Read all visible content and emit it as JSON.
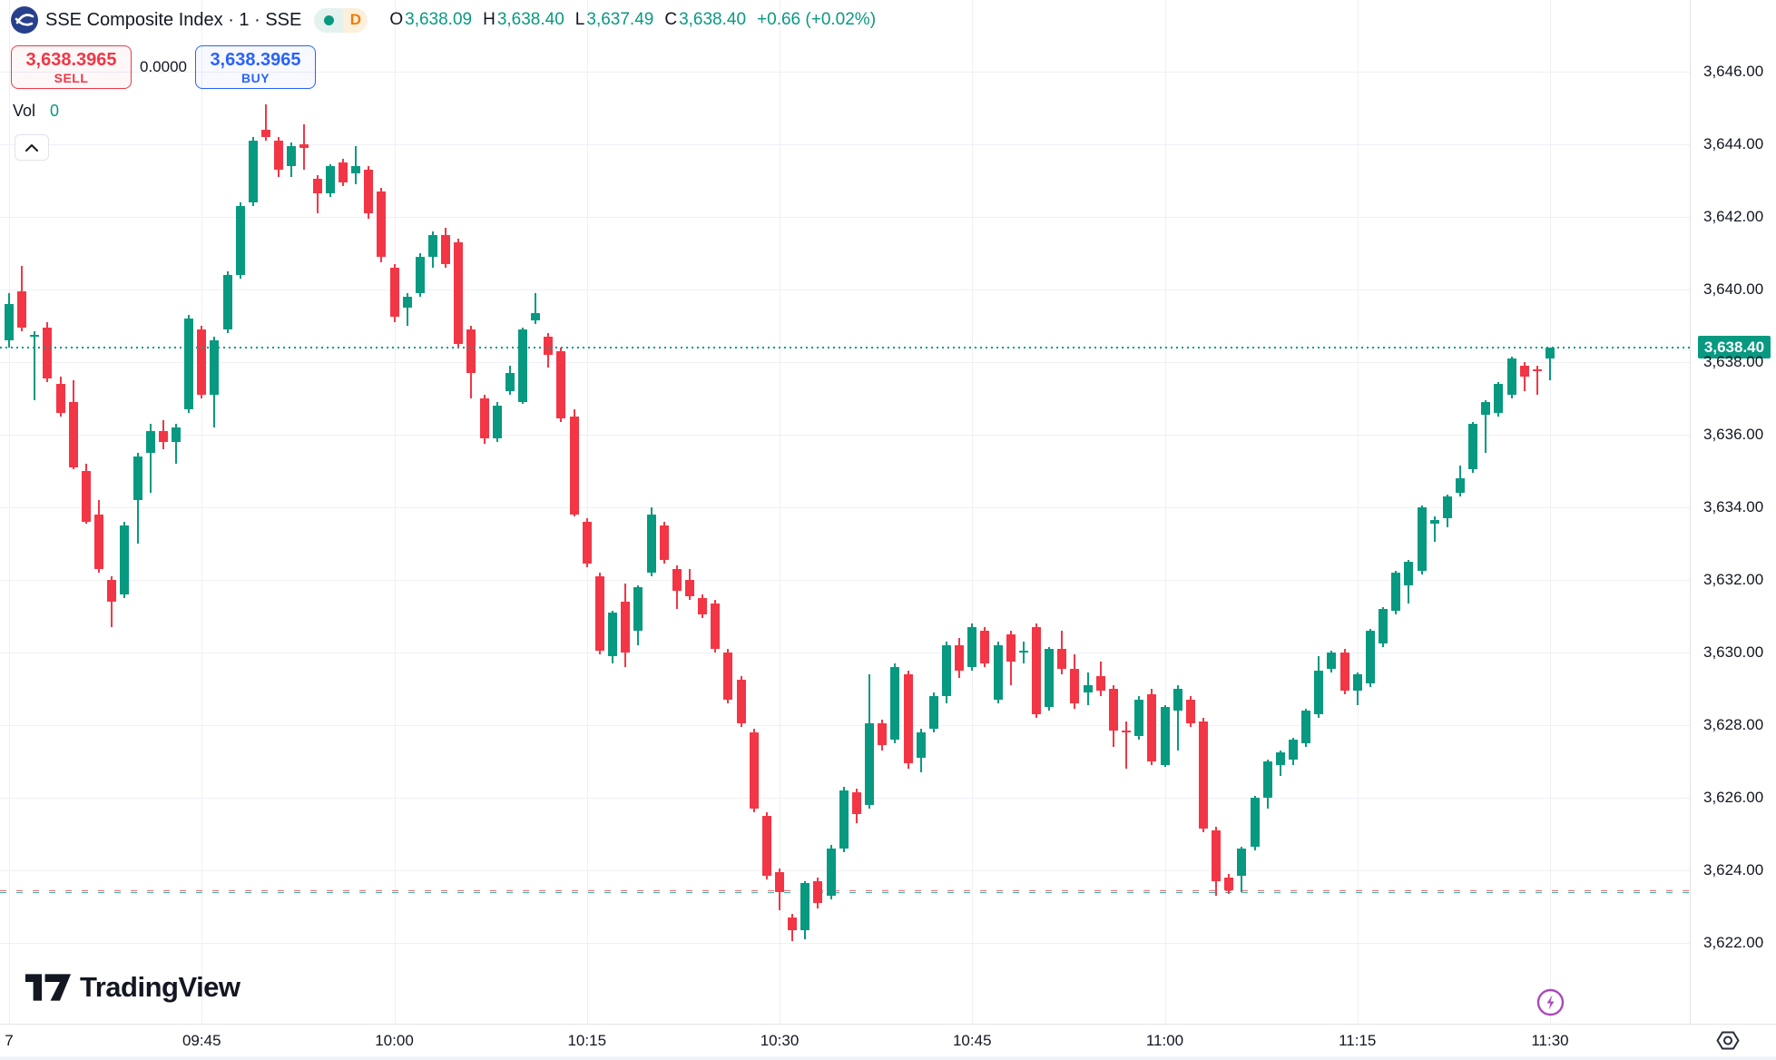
{
  "header": {
    "symbol_title": "SSE Composite Index · 1 · SSE",
    "interval_badge": "D",
    "ohlc": {
      "o_label": "O",
      "o": "3,638.09",
      "h_label": "H",
      "h": "3,638.40",
      "l_label": "L",
      "l": "3,637.49",
      "c_label": "C",
      "c": "3,638.40",
      "change": "+0.66 (+0.02%)"
    }
  },
  "trade_panel": {
    "sell_price": "3,638.3965",
    "sell_label": "SELL",
    "spread": "0.0000",
    "buy_price": "3,638.3965",
    "buy_label": "BUY",
    "vol_label": "Vol",
    "vol_value": "0"
  },
  "footer": {
    "brand": "TradingView"
  },
  "colors": {
    "up": "#089981",
    "down": "#f23645",
    "buy_blue": "#2962ff",
    "sell_red": "#f23645",
    "interval_orange": "#f57c00",
    "flash_purple": "#ab47bc",
    "text": "#131722",
    "grid": "#eef0f6"
  },
  "chart_data": {
    "type": "candlestick",
    "title": "SSE Composite Index · 1 · SSE",
    "interval": "1 minute",
    "ylim": [
      3619.8,
      3648.0
    ],
    "grid": true,
    "up_color": "#089981",
    "down_color": "#f23645",
    "price_line": {
      "value": 3638.4,
      "label": "3,638.40"
    },
    "low_line_value": 3623.42,
    "y_ticks": [
      {
        "label": "3,646.00",
        "value": 3646
      },
      {
        "label": "3,644.00",
        "value": 3644
      },
      {
        "label": "3,642.00",
        "value": 3642
      },
      {
        "label": "3,640.00",
        "value": 3640
      },
      {
        "label": "3,638.00",
        "value": 3638
      },
      {
        "label": "3,636.00",
        "value": 3636
      },
      {
        "label": "3,634.00",
        "value": 3634
      },
      {
        "label": "3,632.00",
        "value": 3632
      },
      {
        "label": "3,630.00",
        "value": 3630
      },
      {
        "label": "3,628.00",
        "value": 3628
      },
      {
        "label": "3,626.00",
        "value": 3626
      },
      {
        "label": "3,624.00",
        "value": 3624
      },
      {
        "label": "3,622.00",
        "value": 3622
      }
    ],
    "x_ticks": [
      {
        "label": "7",
        "index": 0
      },
      {
        "label": "09:45",
        "index": 15
      },
      {
        "label": "10:00",
        "index": 30
      },
      {
        "label": "10:15",
        "index": 45
      },
      {
        "label": "10:30",
        "index": 60
      },
      {
        "label": "10:45",
        "index": 75
      },
      {
        "label": "11:00",
        "index": 90
      },
      {
        "label": "11:15",
        "index": 105
      },
      {
        "label": "11:30",
        "index": 120
      }
    ],
    "candles_format": [
      "open",
      "high",
      "low",
      "close"
    ],
    "candles": [
      [
        3638.6,
        3639.9,
        3638.4,
        3639.6
      ],
      [
        3639.95,
        3640.65,
        3638.85,
        3638.95
      ],
      [
        3638.7,
        3638.85,
        3636.95,
        3638.75
      ],
      [
        3638.95,
        3639.1,
        3637.45,
        3637.55
      ],
      [
        3637.4,
        3637.6,
        3636.5,
        3636.6
      ],
      [
        3636.9,
        3637.5,
        3635.05,
        3635.1
      ],
      [
        3635.0,
        3635.2,
        3633.55,
        3633.6
      ],
      [
        3633.8,
        3634.2,
        3632.2,
        3632.3
      ],
      [
        3632.0,
        3632.1,
        3630.7,
        3631.4
      ],
      [
        3631.6,
        3633.6,
        3631.5,
        3633.5
      ],
      [
        3634.2,
        3635.5,
        3633.0,
        3635.4
      ],
      [
        3635.5,
        3636.3,
        3634.4,
        3636.1
      ],
      [
        3636.1,
        3636.4,
        3635.6,
        3635.8
      ],
      [
        3635.8,
        3636.3,
        3635.2,
        3636.2
      ],
      [
        3636.7,
        3639.3,
        3636.6,
        3639.2
      ],
      [
        3638.9,
        3639.0,
        3637.0,
        3637.1
      ],
      [
        3637.1,
        3638.7,
        3636.2,
        3638.6
      ],
      [
        3638.9,
        3640.5,
        3638.8,
        3640.4
      ],
      [
        3640.4,
        3642.4,
        3640.3,
        3642.3
      ],
      [
        3642.4,
        3644.2,
        3642.3,
        3644.1
      ],
      [
        3644.4,
        3645.1,
        3644.1,
        3644.2
      ],
      [
        3644.1,
        3644.2,
        3643.1,
        3643.3
      ],
      [
        3643.4,
        3644.05,
        3643.1,
        3643.95
      ],
      [
        3644.0,
        3644.55,
        3643.3,
        3643.9
      ],
      [
        3643.05,
        3643.15,
        3642.1,
        3642.65
      ],
      [
        3642.65,
        3643.45,
        3642.55,
        3643.4
      ],
      [
        3643.5,
        3643.6,
        3642.85,
        3642.95
      ],
      [
        3643.2,
        3643.95,
        3642.9,
        3643.4
      ],
      [
        3643.3,
        3643.4,
        3641.95,
        3642.1
      ],
      [
        3642.7,
        3642.8,
        3640.75,
        3640.9
      ],
      [
        3640.6,
        3640.7,
        3639.1,
        3639.25
      ],
      [
        3639.5,
        3639.9,
        3639.0,
        3639.8
      ],
      [
        3639.9,
        3641.0,
        3639.8,
        3640.9
      ],
      [
        3640.9,
        3641.6,
        3640.6,
        3641.5
      ],
      [
        3641.5,
        3641.7,
        3640.6,
        3640.7
      ],
      [
        3641.3,
        3641.4,
        3638.4,
        3638.5
      ],
      [
        3638.9,
        3639.0,
        3637.0,
        3637.7
      ],
      [
        3637.0,
        3637.1,
        3635.75,
        3635.9
      ],
      [
        3635.9,
        3636.9,
        3635.8,
        3636.8
      ],
      [
        3637.2,
        3637.9,
        3637.1,
        3637.7
      ],
      [
        3636.9,
        3638.95,
        3636.85,
        3638.9
      ],
      [
        3639.15,
        3639.9,
        3639.05,
        3639.35
      ],
      [
        3638.7,
        3638.8,
        3637.85,
        3638.2
      ],
      [
        3638.3,
        3638.4,
        3636.35,
        3636.45
      ],
      [
        3636.5,
        3636.7,
        3633.75,
        3633.8
      ],
      [
        3633.6,
        3633.7,
        3632.35,
        3632.45
      ],
      [
        3632.1,
        3632.2,
        3629.95,
        3630.05
      ],
      [
        3629.9,
        3631.15,
        3629.7,
        3631.1
      ],
      [
        3631.4,
        3631.9,
        3629.6,
        3630.0
      ],
      [
        3630.6,
        3631.85,
        3630.2,
        3631.8
      ],
      [
        3632.2,
        3634.0,
        3632.1,
        3633.8
      ],
      [
        3633.5,
        3633.6,
        3632.45,
        3632.55
      ],
      [
        3632.3,
        3632.4,
        3631.2,
        3631.7
      ],
      [
        3632.0,
        3632.3,
        3631.45,
        3631.55
      ],
      [
        3631.5,
        3631.6,
        3630.95,
        3631.05
      ],
      [
        3631.35,
        3631.45,
        3630.0,
        3630.1
      ],
      [
        3630.0,
        3630.1,
        3628.6,
        3628.7
      ],
      [
        3629.25,
        3629.35,
        3627.95,
        3628.05
      ],
      [
        3627.8,
        3627.9,
        3625.6,
        3625.7
      ],
      [
        3625.5,
        3625.6,
        3623.75,
        3623.85
      ],
      [
        3623.95,
        3624.05,
        3622.9,
        3623.4
      ],
      [
        3622.7,
        3622.8,
        3622.05,
        3622.35
      ],
      [
        3622.35,
        3623.7,
        3622.1,
        3623.65
      ],
      [
        3623.7,
        3623.8,
        3622.95,
        3623.1
      ],
      [
        3623.3,
        3624.7,
        3623.2,
        3624.6
      ],
      [
        3624.6,
        3626.3,
        3624.5,
        3626.2
      ],
      [
        3626.15,
        3626.25,
        3625.3,
        3625.55
      ],
      [
        3625.8,
        3629.4,
        3625.7,
        3628.05
      ],
      [
        3628.05,
        3628.15,
        3627.3,
        3627.45
      ],
      [
        3627.6,
        3629.7,
        3627.5,
        3629.6
      ],
      [
        3629.4,
        3629.5,
        3626.8,
        3626.95
      ],
      [
        3627.1,
        3627.9,
        3626.7,
        3627.8
      ],
      [
        3627.9,
        3628.9,
        3627.8,
        3628.8
      ],
      [
        3628.8,
        3630.3,
        3628.6,
        3630.2
      ],
      [
        3630.2,
        3630.4,
        3629.3,
        3629.5
      ],
      [
        3629.6,
        3630.8,
        3629.5,
        3630.7
      ],
      [
        3630.6,
        3630.7,
        3629.6,
        3629.7
      ],
      [
        3628.7,
        3630.3,
        3628.6,
        3630.2
      ],
      [
        3630.5,
        3630.6,
        3629.1,
        3629.75
      ],
      [
        3630.0,
        3630.3,
        3629.7,
        3630.05
      ],
      [
        3630.7,
        3630.8,
        3628.2,
        3628.3
      ],
      [
        3628.5,
        3630.15,
        3628.4,
        3630.1
      ],
      [
        3630.1,
        3630.6,
        3629.4,
        3629.55
      ],
      [
        3629.55,
        3629.95,
        3628.45,
        3628.6
      ],
      [
        3628.9,
        3629.45,
        3628.55,
        3629.1
      ],
      [
        3629.35,
        3629.75,
        3628.8,
        3628.95
      ],
      [
        3629.0,
        3629.1,
        3627.4,
        3627.85
      ],
      [
        3627.85,
        3628.1,
        3626.8,
        3627.8
      ],
      [
        3627.7,
        3628.8,
        3627.6,
        3628.7
      ],
      [
        3628.85,
        3629.0,
        3626.9,
        3627.0
      ],
      [
        3626.9,
        3628.55,
        3626.85,
        3628.5
      ],
      [
        3628.4,
        3629.1,
        3627.3,
        3629.0
      ],
      [
        3628.7,
        3628.8,
        3627.95,
        3628.05
      ],
      [
        3628.1,
        3628.2,
        3625.05,
        3625.15
      ],
      [
        3625.1,
        3625.2,
        3623.3,
        3623.7
      ],
      [
        3623.8,
        3623.9,
        3623.35,
        3623.45
      ],
      [
        3623.85,
        3624.65,
        3623.4,
        3624.6
      ],
      [
        3624.65,
        3626.05,
        3624.55,
        3626.0
      ],
      [
        3626.0,
        3627.05,
        3625.7,
        3627.0
      ],
      [
        3626.9,
        3627.3,
        3626.6,
        3627.25
      ],
      [
        3627.05,
        3627.65,
        3626.9,
        3627.6
      ],
      [
        3627.5,
        3628.45,
        3627.4,
        3628.4
      ],
      [
        3628.3,
        3629.9,
        3628.2,
        3629.5
      ],
      [
        3629.55,
        3630.05,
        3629.45,
        3630.0
      ],
      [
        3630.0,
        3630.1,
        3628.85,
        3628.95
      ],
      [
        3628.95,
        3629.45,
        3628.55,
        3629.4
      ],
      [
        3629.15,
        3630.65,
        3629.05,
        3630.6
      ],
      [
        3630.25,
        3631.25,
        3630.15,
        3631.2
      ],
      [
        3631.15,
        3632.25,
        3631.05,
        3632.2
      ],
      [
        3631.85,
        3632.55,
        3631.35,
        3632.5
      ],
      [
        3632.25,
        3634.05,
        3632.15,
        3634.0
      ],
      [
        3633.55,
        3633.75,
        3633.05,
        3633.65
      ],
      [
        3633.7,
        3634.35,
        3633.45,
        3634.3
      ],
      [
        3634.4,
        3635.15,
        3634.3,
        3634.8
      ],
      [
        3635.05,
        3636.35,
        3634.95,
        3636.3
      ],
      [
        3636.55,
        3636.95,
        3635.5,
        3636.9
      ],
      [
        3636.6,
        3637.45,
        3636.5,
        3637.4
      ],
      [
        3637.1,
        3638.15,
        3637.0,
        3638.1
      ],
      [
        3637.9,
        3638.0,
        3637.2,
        3637.6
      ],
      [
        3637.8,
        3637.9,
        3637.1,
        3637.74
      ],
      [
        3638.09,
        3638.4,
        3637.49,
        3638.4
      ]
    ]
  }
}
